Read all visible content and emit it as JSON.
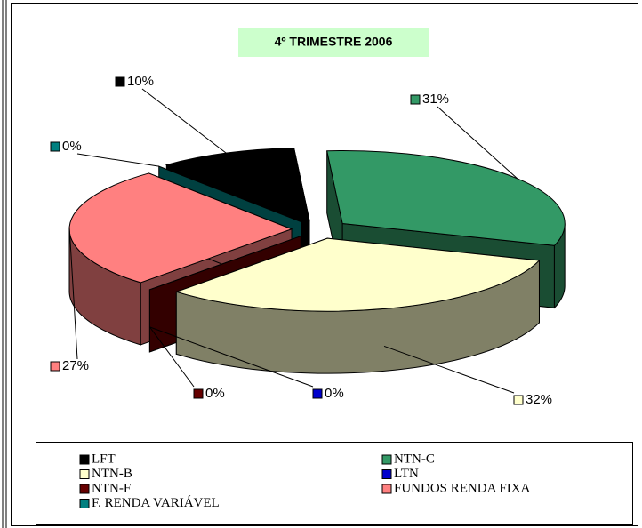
{
  "chart_data": {
    "type": "pie3d",
    "title": "4º TRIMESTRE 2006",
    "categories": [
      "LFT",
      "NTN-C",
      "NTN-B",
      "LTN",
      "NTN-F",
      "FUNDOS RENDA FIXA",
      "F. RENDA VARIÁVEL"
    ],
    "values": [
      10,
      31,
      32,
      0,
      0,
      27,
      0
    ],
    "value_labels": [
      "10%",
      "31%",
      "32%",
      "0%",
      "0%",
      "27%",
      "0%"
    ],
    "colors": [
      "#000000",
      "#339966",
      "#ffffcc",
      "#0000cc",
      "#660000",
      "#ff8080",
      "#008080"
    ],
    "legend": "bottom"
  }
}
